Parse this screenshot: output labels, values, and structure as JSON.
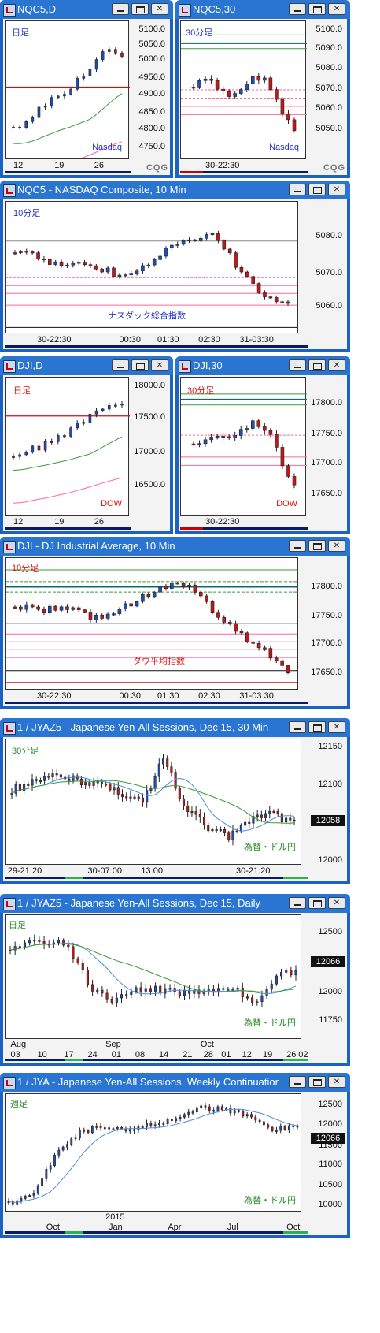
{
  "windows": [
    {
      "id": "w1",
      "title": "NQC5,D",
      "panel_label": "日足",
      "instrument": "Nasdaq",
      "y_ticks": [
        "5100.0",
        "5050.0",
        "5000.0",
        "4950.0",
        "4900.0",
        "4850.0",
        "4800.0",
        "4750.0"
      ],
      "x_ticks": [
        "12",
        "19",
        "26"
      ],
      "logo": "CQG"
    },
    {
      "id": "w2",
      "title": "NQC5,30",
      "panel_label": "30分足",
      "instrument": "Nasdaq",
      "y_ticks": [
        "5100.0",
        "5090.0",
        "5080.0",
        "5070.0",
        "5060.0",
        "5050.0"
      ],
      "x_ticks": [
        "30-22:30"
      ],
      "logo": "CQG"
    },
    {
      "id": "w3",
      "title": "NQC5 - NASDAQ Composite, 10 Min",
      "panel_label": "10分足",
      "instrument": "ナスダック総合指数",
      "y_ticks": [
        "5080.0",
        "5070.0",
        "5060.0"
      ],
      "x_ticks": [
        "30-22:30",
        "00:30",
        "01:30",
        "02:30",
        "31-03:30"
      ]
    },
    {
      "id": "w4",
      "title": "DJI,D",
      "panel_label": "日足",
      "instrument": "DOW",
      "y_ticks": [
        "18000.0",
        "17500.0",
        "17000.0",
        "16500.0"
      ],
      "x_ticks": [
        "12",
        "19",
        "26"
      ]
    },
    {
      "id": "w5",
      "title": "DJI,30",
      "panel_label": "30分足",
      "instrument": "DOW",
      "y_ticks": [
        "17800.0",
        "17750.0",
        "17700.0",
        "17650.0"
      ],
      "x_ticks": [
        "30-22:30"
      ]
    },
    {
      "id": "w6",
      "title": "DJI - DJ Industrial Average, 10 Min",
      "panel_label": "10分足",
      "instrument": "ダウ平均指数",
      "y_ticks": [
        "17800.0",
        "17750.0",
        "17700.0",
        "17650.0"
      ],
      "x_ticks": [
        "30-22:30",
        "00:30",
        "01:30",
        "02:30",
        "31-03:30"
      ]
    },
    {
      "id": "w7",
      "title": "1 / JYAZ5 - Japanese Yen-All Sessions, Dec 15, 30 Min",
      "panel_label": "30分足",
      "instrument": "為替・ドル円",
      "y_ticks": [
        "12150",
        "12100",
        "12050",
        "12000"
      ],
      "last_value": "12058",
      "x_ticks": [
        "29-21:20",
        "30-07:00",
        "13:00",
        "30-21:20"
      ]
    },
    {
      "id": "w8",
      "title": "1 / JYAZ5 - Japanese Yen-All Sessions, Dec 15, Daily",
      "panel_label": "日足",
      "instrument": "為替・ドル円",
      "y_ticks": [
        "12500",
        "12250",
        "12000",
        "11750"
      ],
      "last_value": "12066",
      "x_ticks": [
        "03",
        "10",
        "17",
        "24",
        "01",
        "08",
        "14",
        "21",
        "28",
        "01",
        "12",
        "19",
        "26",
        "02"
      ],
      "x_months": [
        "Aug",
        "Sep",
        "Oct"
      ]
    },
    {
      "id": "w9",
      "title": "1 / JYA - Japanese Yen-All Sessions, Weekly Continuation",
      "panel_label": "週足",
      "instrument": "為替・ドル円",
      "y_ticks": [
        "12500",
        "12000",
        "11500",
        "11000",
        "10500",
        "10000"
      ],
      "last_value": "12066",
      "x_ticks": [
        "Oct",
        "Jan",
        "Apr",
        "Jul",
        "Oct"
      ],
      "x_year": "2015"
    }
  ],
  "colors": {
    "title_bar": "#2a74d2",
    "frame": "#1a63c2",
    "up": "#1f4fb4",
    "down": "#c01818",
    "ma_red": "#cc1111",
    "ma_pink": "#ff6699",
    "ma_green": "#3a9a3a",
    "label_blue": "#2233cc",
    "label_red": "#dd1111",
    "label_green": "#2a8a2a"
  },
  "controls": {
    "minimize": "minimize-button",
    "maximize": "maximize-button",
    "close": "close-button"
  }
}
